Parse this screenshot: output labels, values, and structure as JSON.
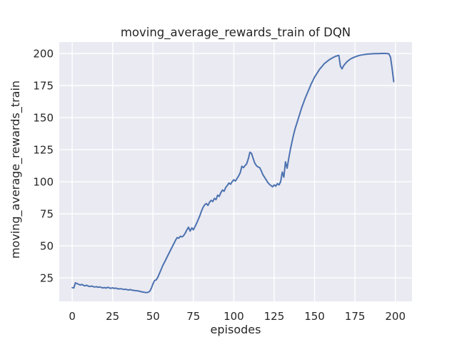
{
  "figure": {
    "title": "moving_average_rewards_train of DQN",
    "xlabel": "episodes",
    "ylabel": "moving_average_rewards_train"
  },
  "chart_data": {
    "type": "line",
    "title": "moving_average_rewards_train of DQN",
    "xlabel": "episodes",
    "ylabel": "moving_average_rewards_train",
    "x_ticks": [
      0,
      25,
      50,
      75,
      100,
      125,
      150,
      175,
      200
    ],
    "y_ticks": [
      25,
      50,
      75,
      100,
      125,
      150,
      175,
      200
    ],
    "xlim": [
      -8,
      210.3
    ],
    "ylim": [
      6.7,
      208.9
    ],
    "grid": true,
    "legend": false,
    "plot_background": "#eaeaf2",
    "grid_color": "#ffffff",
    "text_color": "#262626",
    "series": [
      {
        "name": "moving_average_rewards_train",
        "color": "#4c72b0",
        "x": [
          0,
          1,
          2,
          3,
          4,
          5,
          6,
          7,
          8,
          9,
          10,
          11,
          12,
          13,
          14,
          15,
          16,
          17,
          18,
          19,
          20,
          21,
          22,
          23,
          24,
          25,
          26,
          27,
          28,
          29,
          30,
          31,
          32,
          33,
          34,
          35,
          36,
          37,
          38,
          39,
          40,
          41,
          42,
          43,
          44,
          45,
          46,
          47,
          48,
          49,
          50,
          51,
          52,
          53,
          54,
          55,
          56,
          57,
          58,
          59,
          60,
          61,
          62,
          63,
          64,
          65,
          66,
          67,
          68,
          69,
          70,
          71,
          72,
          73,
          74,
          75,
          76,
          77,
          78,
          79,
          80,
          81,
          82,
          83,
          84,
          85,
          86,
          87,
          88,
          89,
          90,
          91,
          92,
          93,
          94,
          95,
          96,
          97,
          98,
          99,
          100,
          101,
          102,
          103,
          104,
          105,
          106,
          107,
          108,
          109,
          110,
          111,
          112,
          113,
          114,
          115,
          116,
          117,
          118,
          119,
          120,
          121,
          122,
          123,
          124,
          125,
          126,
          127,
          128,
          129,
          130,
          131,
          132,
          133,
          134,
          135,
          136,
          137,
          138,
          139,
          140,
          141,
          142,
          143,
          144,
          145,
          146,
          147,
          148,
          149,
          150,
          151,
          152,
          153,
          154,
          155,
          156,
          157,
          158,
          159,
          160,
          161,
          162,
          163,
          164,
          165,
          166,
          167,
          168,
          169,
          170,
          171,
          172,
          173,
          174,
          175,
          176,
          177,
          178,
          179,
          180,
          181,
          182,
          183,
          184,
          185,
          186,
          187,
          188,
          189,
          190,
          191,
          192,
          193,
          194,
          195,
          196,
          197,
          198,
          199
        ],
        "y": [
          17.4,
          17.2,
          21.2,
          20.6,
          20.0,
          19.5,
          19.9,
          19.2,
          18.8,
          19.3,
          18.6,
          18.3,
          18.7,
          18.2,
          17.9,
          18.2,
          17.7,
          18.0,
          17.6,
          17.2,
          17.5,
          17.1,
          17.7,
          17.2,
          16.9,
          17.3,
          16.8,
          17.1,
          16.6,
          16.4,
          16.6,
          16.3,
          16.0,
          16.2,
          15.8,
          15.6,
          15.9,
          15.5,
          15.3,
          15.1,
          15.0,
          14.8,
          14.5,
          14.2,
          13.9,
          13.7,
          13.6,
          13.8,
          14.6,
          17.0,
          20.5,
          23.0,
          23.5,
          25.5,
          28.5,
          31.5,
          34.5,
          37.0,
          39.5,
          42.0,
          44.5,
          47.0,
          49.5,
          52.0,
          54.5,
          56.5,
          56.0,
          57.5,
          57.0,
          58.0,
          60.0,
          62.5,
          64.5,
          61.5,
          64.0,
          62.5,
          65.0,
          67.5,
          70.5,
          73.5,
          77.0,
          80.0,
          82.0,
          83.0,
          81.5,
          84.0,
          85.5,
          84.5,
          87.0,
          86.0,
          89.5,
          88.5,
          91.5,
          93.5,
          92.5,
          95.5,
          97.0,
          99.0,
          98.0,
          100.0,
          101.5,
          100.5,
          102.5,
          104.5,
          107.0,
          112.0,
          111.0,
          112.5,
          114.0,
          118.0,
          123.0,
          122.0,
          118.0,
          114.5,
          112.5,
          111.5,
          111.0,
          108.5,
          105.5,
          103.5,
          101.5,
          99.5,
          98.0,
          97.0,
          96.0,
          97.5,
          96.5,
          98.5,
          97.5,
          100.0,
          107.5,
          103.5,
          115.5,
          110.5,
          118.0,
          125.0,
          131.0,
          136.5,
          141.5,
          145.5,
          149.5,
          153.5,
          157.5,
          161.0,
          164.5,
          167.5,
          170.5,
          173.5,
          176.5,
          179.0,
          181.5,
          183.5,
          185.5,
          187.5,
          189.0,
          190.5,
          192.0,
          193.0,
          194.0,
          195.0,
          195.8,
          196.5,
          197.2,
          197.8,
          198.2,
          198.5,
          190.0,
          188.0,
          190.5,
          192.0,
          193.5,
          194.5,
          195.5,
          196.2,
          196.8,
          197.3,
          197.8,
          198.2,
          198.5,
          198.8,
          199.0,
          199.2,
          199.4,
          199.5,
          199.6,
          199.7,
          199.8,
          199.8,
          199.9,
          199.9,
          199.9,
          200.0,
          200.0,
          200.0,
          200.0,
          199.9,
          199.7,
          197.0,
          188.0,
          178.0
        ]
      }
    ]
  }
}
